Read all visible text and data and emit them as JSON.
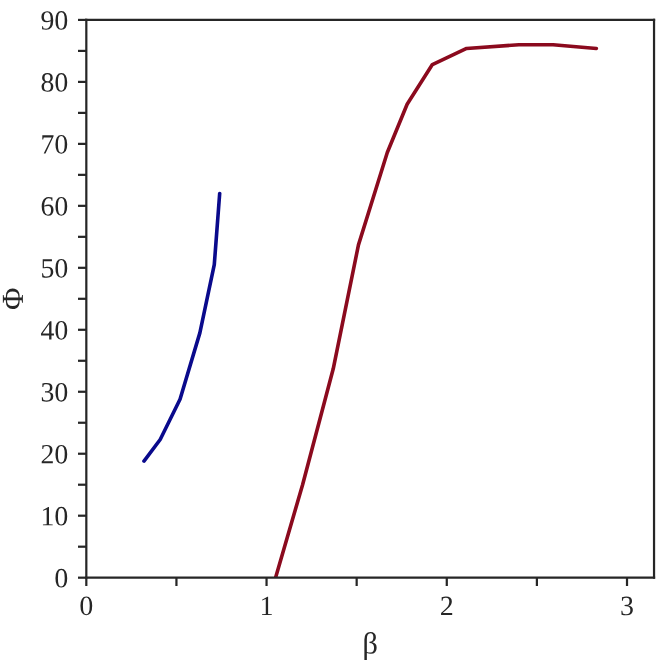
{
  "chart_data": {
    "type": "line",
    "xlabel": "β",
    "ylabel": "Φ",
    "xlim": [
      0,
      3.15
    ],
    "ylim": [
      0,
      90
    ],
    "xticks": [
      0,
      {
        "value": 0.5,
        "label": null
      },
      1,
      {
        "value": 1.5,
        "label": null
      },
      2,
      {
        "value": 2.5,
        "label": null
      },
      3
    ],
    "yticks": [
      0,
      {
        "value": 5,
        "label": null
      },
      10,
      {
        "value": 15,
        "label": null
      },
      20,
      {
        "value": 25,
        "label": null
      },
      30,
      {
        "value": 35,
        "label": null
      },
      40,
      {
        "value": 45,
        "label": null
      },
      50,
      {
        "value": 55,
        "label": null
      },
      60,
      {
        "value": 65,
        "label": null
      },
      70,
      {
        "value": 75,
        "label": null
      },
      80,
      {
        "value": 85,
        "label": null
      },
      90
    ],
    "grid": false,
    "legend": false,
    "line_style": "solid",
    "series": [
      {
        "color": "#0a0a8c",
        "x": [
          0.32,
          0.41,
          0.52,
          0.63,
          0.71,
          0.74
        ],
        "values": [
          18.8,
          22.3,
          28.8,
          39.5,
          50.5,
          62
        ]
      },
      {
        "color": "#8b0a1e",
        "x": [
          1.05,
          1.2,
          1.37,
          1.51,
          1.67,
          1.78,
          1.92,
          2.11,
          2.4,
          2.59,
          2.83
        ],
        "values": [
          0,
          15,
          33.7,
          53.7,
          68.6,
          76.4,
          82.8,
          85.4,
          86,
          86,
          85.4
        ]
      }
    ]
  }
}
